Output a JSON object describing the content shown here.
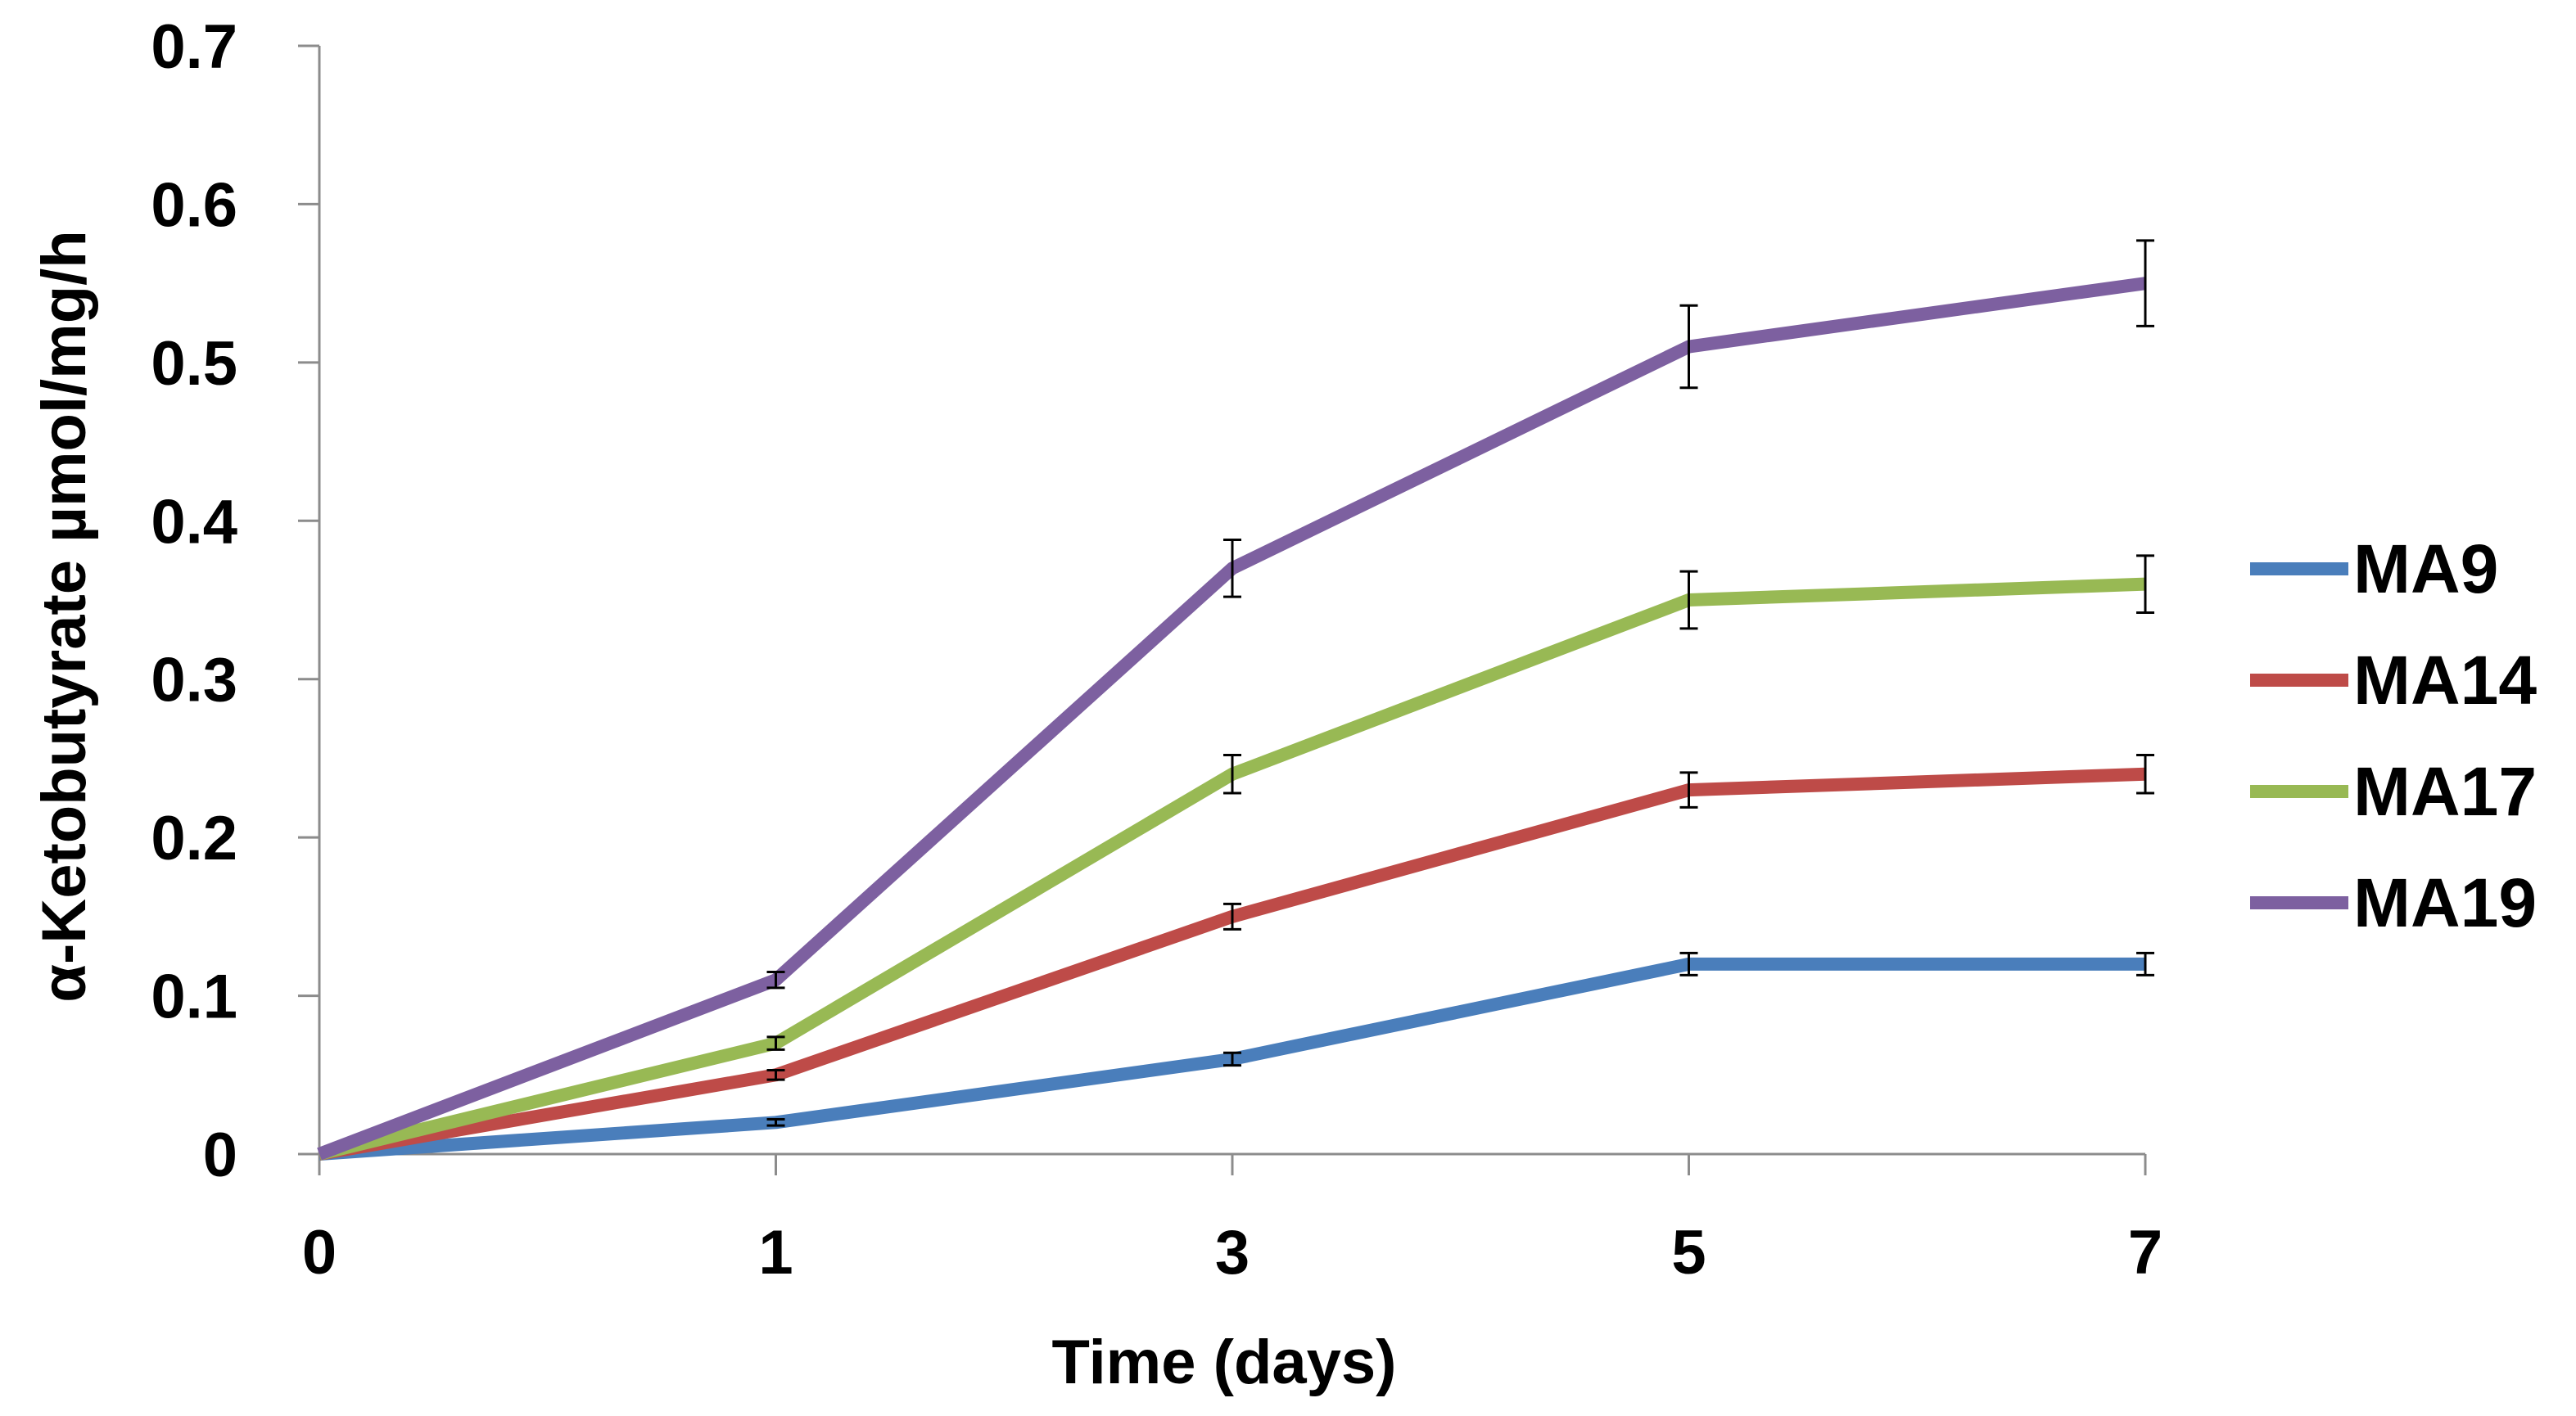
{
  "chart_data": {
    "type": "line",
    "title": "",
    "xlabel": "Time (days)",
    "ylabel": "α-Ketobutyrate µmol/mg/h",
    "x": [
      0,
      1,
      3,
      5,
      7
    ],
    "x_tick_labels": [
      "0",
      "1",
      "3",
      "5",
      "7"
    ],
    "y_ticks": [
      0,
      0.1,
      0.2,
      0.3,
      0.4,
      0.5,
      0.6,
      0.7
    ],
    "y_tick_labels": [
      "0",
      "0.1",
      "0.2",
      "0.3",
      "0.4",
      "0.5",
      "0.6",
      "0.7"
    ],
    "ylim": [
      0,
      0.7
    ],
    "grid": false,
    "legend_position": "right",
    "series": [
      {
        "name": "MA9",
        "color": "#4a7ebb",
        "values": [
          0,
          0.02,
          0.06,
          0.12,
          0.12
        ],
        "errors": [
          0,
          0.002,
          0.004,
          0.007,
          0.007
        ]
      },
      {
        "name": "MA14",
        "color": "#be4b48",
        "values": [
          0,
          0.05,
          0.15,
          0.23,
          0.24
        ],
        "errors": [
          0,
          0.003,
          0.008,
          0.011,
          0.012
        ]
      },
      {
        "name": "MA17",
        "color": "#98b954",
        "values": [
          0,
          0.07,
          0.24,
          0.35,
          0.36
        ],
        "errors": [
          0,
          0.004,
          0.012,
          0.018,
          0.018
        ]
      },
      {
        "name": "MA19",
        "color": "#7d60a0",
        "values": [
          0,
          0.11,
          0.37,
          0.51,
          0.55
        ],
        "errors": [
          0,
          0.005,
          0.018,
          0.026,
          0.027
        ]
      }
    ]
  }
}
